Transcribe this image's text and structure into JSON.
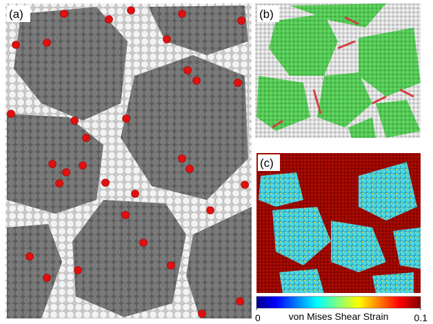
{
  "panels": {
    "a": "(a)",
    "b": "(b)",
    "c": "(c)"
  },
  "colorbar": {
    "label": "von Mises Shear Strain",
    "lim": [
      0,
      0.1
    ],
    "ticks": [
      0,
      0.1
    ]
  }
}
